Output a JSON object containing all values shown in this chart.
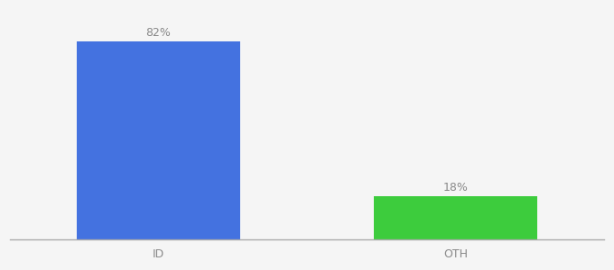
{
  "categories": [
    "ID",
    "OTH"
  ],
  "values": [
    82,
    18
  ],
  "bar_colors": [
    "#4472e0",
    "#3dcc3d"
  ],
  "bar_labels": [
    "82%",
    "18%"
  ],
  "background_color": "#f5f5f5",
  "text_color": "#888888",
  "label_fontsize": 9,
  "tick_fontsize": 9,
  "ylim": [
    0,
    95
  ],
  "bar_width": 0.55,
  "xlim": [
    -0.5,
    1.5
  ]
}
